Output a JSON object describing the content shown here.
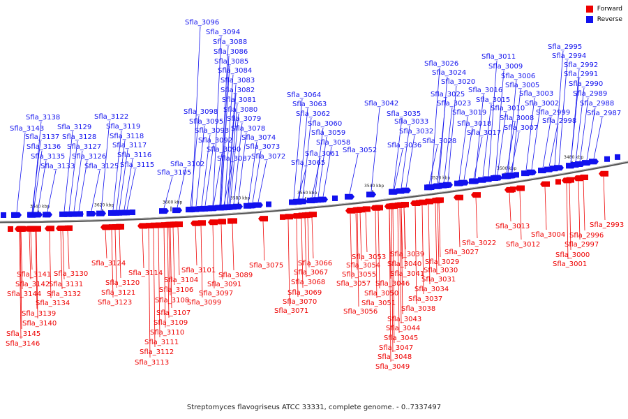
{
  "colors": {
    "forward": "#ee0000",
    "reverse": "#1111ee",
    "axis": "#555555"
  },
  "legend": [
    {
      "key": "forward",
      "label": "Forward"
    },
    {
      "key": "reverse",
      "label": "Reverse"
    }
  ],
  "caption": "Streptomyces flavogriseus ATCC 33331, complete genome. - 0..7337497",
  "ticks": [
    "3640 kbp",
    "3620 kbp",
    "3600 kbp",
    "3580 kbp",
    "3560 kbp",
    "3540 kbp",
    "3520 kbp",
    "3500 kbp",
    "3480 kbp"
  ],
  "reverse_genes": [
    "Sfla_3138",
    "Sfla_3143",
    "Sfla_3137",
    "Sfla_3136",
    "Sfla_3135",
    "Sfla_3133",
    "Sfla_3129",
    "Sfla_3128",
    "Sfla_3127",
    "Sfla_3126",
    "Sfla_3125",
    "Sfla_3122",
    "Sfla_3119",
    "Sfla_3118",
    "Sfla_3117",
    "Sfla_3116",
    "Sfla_3115",
    "Sfla_3105",
    "Sfla_3102",
    "Sfla_3098",
    "Sfla_3096",
    "Sfla_3095",
    "Sfla_3094",
    "Sfla_3093",
    "Sfla_3092",
    "Sfla_3090",
    "Sfla_3088",
    "Sfla_3087",
    "Sfla_3086",
    "Sfla_3085",
    "Sfla_3084",
    "Sfla_3083",
    "Sfla_3082",
    "Sfla_3081",
    "Sfla_3080",
    "Sfla_3079",
    "Sfla_3078",
    "Sfla_3074",
    "Sfla_3073",
    "Sfla_3072",
    "Sfla_3064",
    "Sfla_3065",
    "Sfla_3063",
    "Sfla_3062",
    "Sfla_3061",
    "Sfla_3060",
    "Sfla_3059",
    "Sfla_3058",
    "Sfla_3052",
    "Sfla_3042",
    "Sfla_3036",
    "Sfla_3035",
    "Sfla_3033",
    "Sfla_3032",
    "Sfla_3028",
    "Sfla_3026",
    "Sfla_3025",
    "Sfla_3024",
    "Sfla_3023",
    "Sfla_3020",
    "Sfla_3019",
    "Sfla_3018",
    "Sfla_3017",
    "Sfla_3016",
    "Sfla_3015",
    "Sfla_3011",
    "Sfla_3010",
    "Sfla_3009",
    "Sfla_3008",
    "Sfla_3007",
    "Sfla_3006",
    "Sfla_3005",
    "Sfla_3003",
    "Sfla_3002",
    "Sfla_2999",
    "Sfla_2998",
    "Sfla_2995",
    "Sfla_2994",
    "Sfla_2992",
    "Sfla_2991",
    "Sfla_2990",
    "Sfla_2989",
    "Sfla_2988",
    "Sfla_2987"
  ],
  "forward_genes": [
    "Sfla_3141",
    "Sfla_3142",
    "Sfla_3144",
    "Sfla_3139",
    "Sfla_3140",
    "Sfla_3145",
    "Sfla_3146",
    "Sfla_3130",
    "Sfla_3131",
    "Sfla_3132",
    "Sfla_3134",
    "Sfla_3124",
    "Sfla_3120",
    "Sfla_3121",
    "Sfla_3123",
    "Sfla_3114",
    "Sfla_3104",
    "Sfla_3106",
    "Sfla_3108",
    "Sfla_3107",
    "Sfla_3109",
    "Sfla_3110",
    "Sfla_3111",
    "Sfla_3112",
    "Sfla_3113",
    "Sfla_3101",
    "Sfla_3097",
    "Sfla_3099",
    "Sfla_3089",
    "Sfla_3091",
    "Sfla_3075",
    "Sfla_3066",
    "Sfla_3067",
    "Sfla_3068",
    "Sfla_3069",
    "Sfla_3070",
    "Sfla_3071",
    "Sfla_3053",
    "Sfla_3054",
    "Sfla_3055",
    "Sfla_3057",
    "Sfla_3056",
    "Sfla_3050",
    "Sfla_3051",
    "Sfla_3046",
    "Sfla_3043",
    "Sfla_3044",
    "Sfla_3045",
    "Sfla_3047",
    "Sfla_3048",
    "Sfla_3049",
    "Sfla_3039",
    "Sfla_3040",
    "Sfla_3041",
    "Sfla_3034",
    "Sfla_3037",
    "Sfla_3038",
    "Sfla_3029",
    "Sfla_3030",
    "Sfla_3031",
    "Sfla_3027",
    "Sfla_3022",
    "Sfla_3013",
    "Sfla_3012",
    "Sfla_3004",
    "Sfla_2997",
    "Sfla_3000",
    "Sfla_3001",
    "Sfla_2996",
    "Sfla_2993"
  ]
}
